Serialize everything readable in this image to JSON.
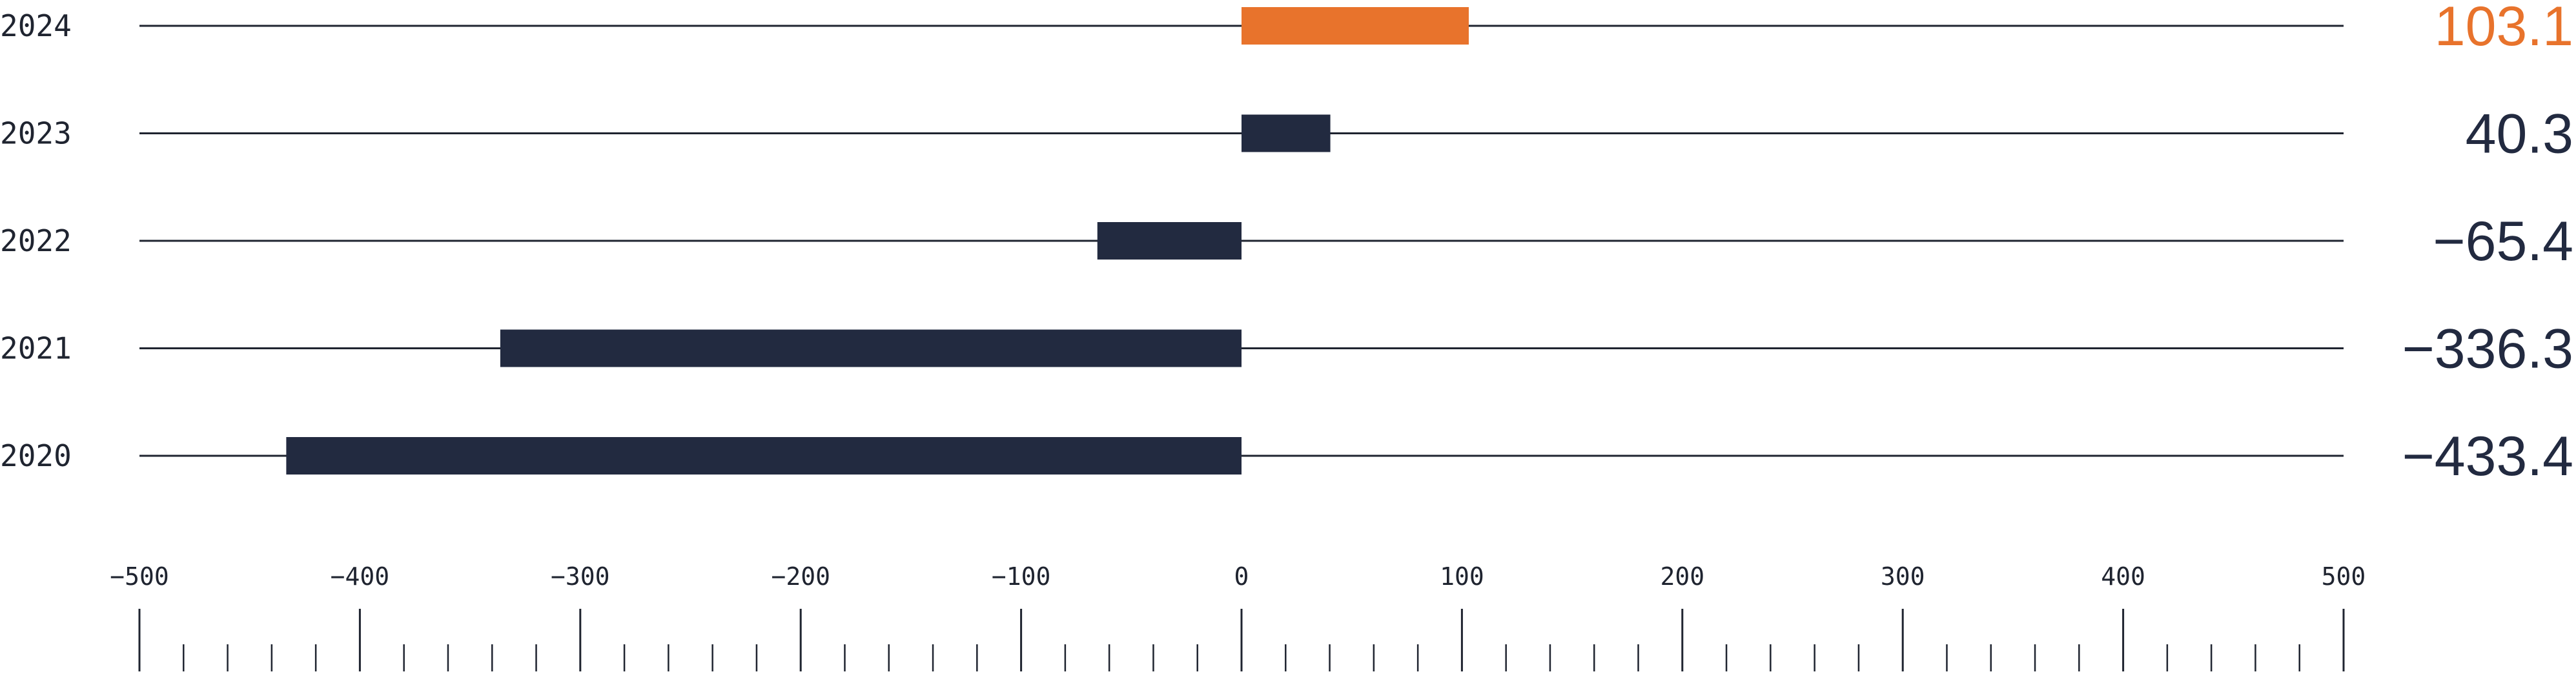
{
  "chart_data": {
    "type": "bar",
    "orientation": "horizontal",
    "categories": [
      "2024",
      "2023",
      "2022",
      "2021",
      "2020"
    ],
    "values": [
      103.1,
      40.3,
      -65.4,
      -336.3,
      -433.4
    ],
    "value_labels": [
      "103.1",
      "40.3",
      "−65.4",
      "−336.3",
      "−433.4"
    ],
    "xlim": [
      -500,
      500
    ],
    "xticks": [
      -500,
      -400,
      -300,
      -200,
      -100,
      0,
      100,
      200,
      300,
      400,
      500
    ],
    "xtick_labels": [
      "−500",
      "−400",
      "−300",
      "−200",
      "−100",
      "0",
      "100",
      "200",
      "300",
      "400",
      "500"
    ],
    "minor_tick_step": 20,
    "title": "",
    "xlabel": "",
    "ylabel": "",
    "grid": false,
    "legend": "none",
    "colors": {
      "highlight": "#e8732c",
      "default": "#222a40",
      "axis": "#1f2430"
    },
    "highlight_category": "2024"
  }
}
